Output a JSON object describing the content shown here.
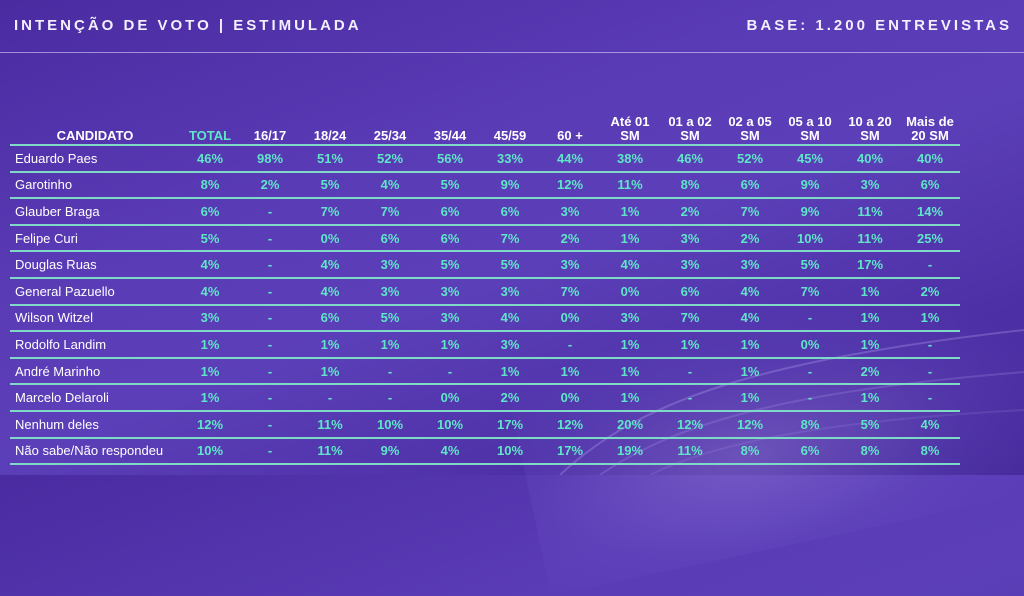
{
  "header": {
    "title": "INTENÇÃO DE VOTO | ESTIMULADA",
    "base": "BASE: 1.200 ENTREVISTAS"
  },
  "table": {
    "columns": [
      {
        "line1": "CANDIDATO",
        "line2": ""
      },
      {
        "line1": "TOTAL",
        "line2": ""
      },
      {
        "line1": "16/17",
        "line2": ""
      },
      {
        "line1": "18/24",
        "line2": ""
      },
      {
        "line1": "25/34",
        "line2": ""
      },
      {
        "line1": "35/44",
        "line2": ""
      },
      {
        "line1": "45/59",
        "line2": ""
      },
      {
        "line1": "60 +",
        "line2": ""
      },
      {
        "line1": "Até 01",
        "line2": "SM"
      },
      {
        "line1": "01 a 02",
        "line2": "SM"
      },
      {
        "line1": "02 a 05",
        "line2": "SM"
      },
      {
        "line1": "05 a 10",
        "line2": "SM"
      },
      {
        "line1": "10 a 20",
        "line2": "SM"
      },
      {
        "line1": "Mais de",
        "line2": "20 SM"
      }
    ],
    "rows": [
      {
        "name": "Eduardo Paes",
        "values": [
          "46%",
          "98%",
          "51%",
          "52%",
          "56%",
          "33%",
          "44%",
          "38%",
          "46%",
          "52%",
          "45%",
          "40%",
          "40%"
        ]
      },
      {
        "name": "Garotinho",
        "values": [
          "8%",
          "2%",
          "5%",
          "4%",
          "5%",
          "9%",
          "12%",
          "11%",
          "8%",
          "6%",
          "9%",
          "3%",
          "6%"
        ]
      },
      {
        "name": "Glauber Braga",
        "values": [
          "6%",
          "-",
          "7%",
          "7%",
          "6%",
          "6%",
          "3%",
          "1%",
          "2%",
          "7%",
          "9%",
          "11%",
          "14%"
        ]
      },
      {
        "name": "Felipe Curi",
        "values": [
          "5%",
          "-",
          "0%",
          "6%",
          "6%",
          "7%",
          "2%",
          "1%",
          "3%",
          "2%",
          "10%",
          "11%",
          "25%"
        ]
      },
      {
        "name": "Douglas Ruas",
        "values": [
          "4%",
          "-",
          "4%",
          "3%",
          "5%",
          "5%",
          "3%",
          "4%",
          "3%",
          "3%",
          "5%",
          "17%",
          "-"
        ]
      },
      {
        "name": "General Pazuello",
        "values": [
          "4%",
          "-",
          "4%",
          "3%",
          "3%",
          "3%",
          "7%",
          "0%",
          "6%",
          "4%",
          "7%",
          "1%",
          "2%"
        ]
      },
      {
        "name": "Wilson Witzel",
        "values": [
          "3%",
          "-",
          "6%",
          "5%",
          "3%",
          "4%",
          "0%",
          "3%",
          "7%",
          "4%",
          "-",
          "1%",
          "1%"
        ]
      },
      {
        "name": "Rodolfo Landim",
        "values": [
          "1%",
          "-",
          "1%",
          "1%",
          "1%",
          "3%",
          "-",
          "1%",
          "1%",
          "1%",
          "0%",
          "1%",
          "-"
        ]
      },
      {
        "name": "André Marinho",
        "values": [
          "1%",
          "-",
          "1%",
          "-",
          "-",
          "1%",
          "1%",
          "1%",
          "-",
          "1%",
          "-",
          "2%",
          "-"
        ]
      },
      {
        "name": "Marcelo Delaroli",
        "values": [
          "1%",
          "-",
          "-",
          "-",
          "0%",
          "2%",
          "0%",
          "1%",
          "-",
          "1%",
          "-",
          "1%",
          "-"
        ]
      },
      {
        "name": "Nenhum deles",
        "values": [
          "12%",
          "-",
          "11%",
          "10%",
          "10%",
          "17%",
          "12%",
          "20%",
          "12%",
          "12%",
          "8%",
          "5%",
          "4%"
        ]
      },
      {
        "name": "Não sabe/Não respondeu",
        "values": [
          "10%",
          "-",
          "11%",
          "9%",
          "4%",
          "10%",
          "17%",
          "19%",
          "11%",
          "8%",
          "6%",
          "8%",
          "8%"
        ]
      }
    ]
  }
}
